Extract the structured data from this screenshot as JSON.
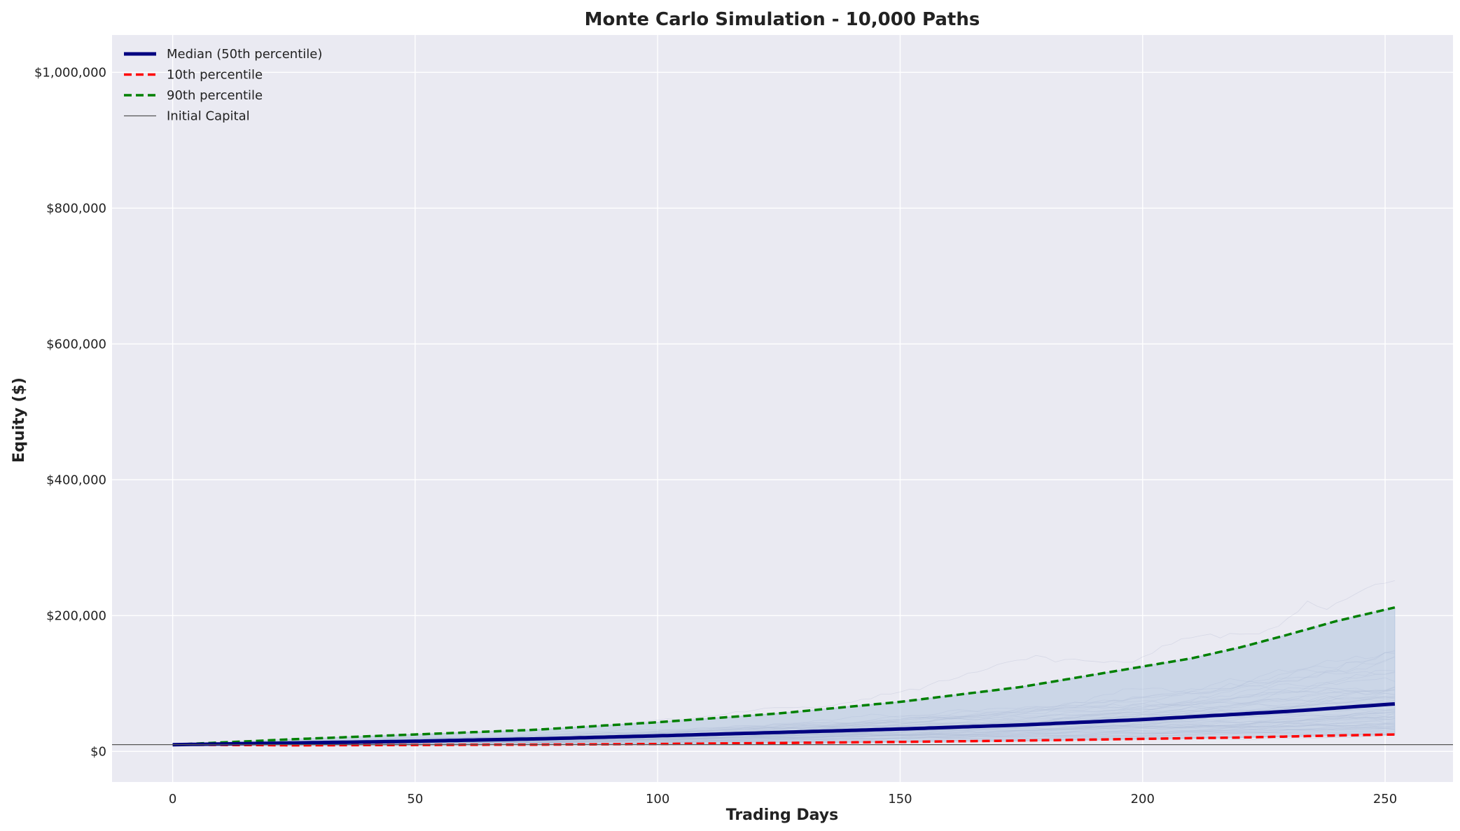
{
  "chart_data": {
    "type": "line",
    "title": "Monte Carlo Simulation - 10,000 Paths",
    "xlabel": "Trading Days",
    "ylabel": "Equity ($)",
    "xlim": [
      -12.5,
      264
    ],
    "ylim": [
      -45000,
      1055000
    ],
    "xticks": [
      0,
      50,
      100,
      150,
      200,
      250
    ],
    "yticks": [
      0,
      200000,
      400000,
      600000,
      800000,
      1000000
    ],
    "ytick_labels": [
      "$0",
      "$200,000",
      "$400,000",
      "$600,000",
      "$800,000",
      "$1,000,000"
    ],
    "grid": true,
    "legend_position": "upper-left",
    "x": [
      0,
      25,
      50,
      75,
      100,
      125,
      150,
      175,
      200,
      210,
      220,
      230,
      240,
      252
    ],
    "series": [
      {
        "name": "Median (50th percentile)",
        "color": "#000080",
        "style": "solid",
        "values": [
          10000,
          12500,
          15000,
          18500,
          23000,
          28000,
          33000,
          39000,
          47000,
          51000,
          55000,
          59000,
          64000,
          70000
        ]
      },
      {
        "name": "10th percentile",
        "color": "#ff0000",
        "style": "dashed",
        "values": [
          10000,
          9000,
          9500,
          10000,
          11000,
          12500,
          14000,
          16000,
          18500,
          19500,
          20500,
          22000,
          23500,
          25000
        ]
      },
      {
        "name": "90th percentile",
        "color": "#008000",
        "style": "dashed",
        "values": [
          10000,
          18000,
          25000,
          32000,
          43000,
          56000,
          73000,
          95000,
          125000,
          137000,
          153000,
          172000,
          192000,
          212000
        ]
      }
    ],
    "reference_line": {
      "name": "Initial Capital",
      "value": 10000,
      "color": "#555555"
    },
    "band": {
      "lower": "10th percentile",
      "upper": "90th percentile",
      "color": "#b0c4de"
    }
  }
}
